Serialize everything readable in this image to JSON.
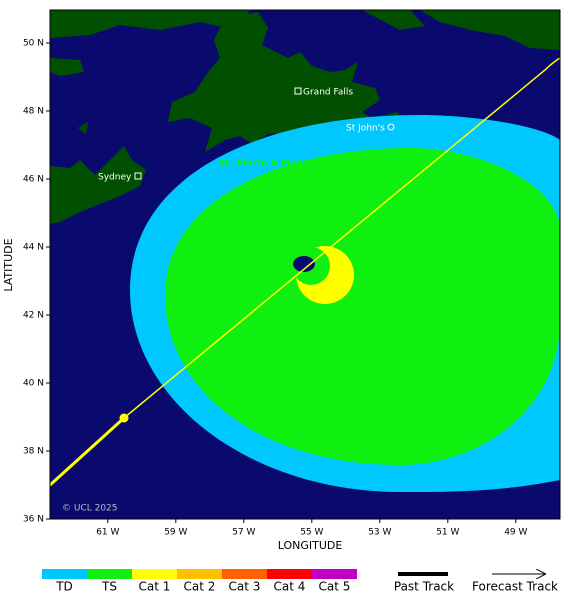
{
  "map": {
    "x_axis": {
      "label": "LONGITUDE",
      "lim": [
        -62.7,
        -47.7
      ],
      "ticks": [
        {
          "value": -61,
          "label": "61 W"
        },
        {
          "value": -59,
          "label": "59 W"
        },
        {
          "value": -57,
          "label": "57 W"
        },
        {
          "value": -55,
          "label": "55 W"
        },
        {
          "value": -53,
          "label": "53 W"
        },
        {
          "value": -51,
          "label": "51 W"
        },
        {
          "value": -49,
          "label": "49 W"
        }
      ]
    },
    "y_axis": {
      "label": "LATITUDE",
      "lim": [
        36,
        50.97
      ],
      "ticks": [
        {
          "value": 36,
          "label": "36 N"
        },
        {
          "value": 38,
          "label": "38 N"
        },
        {
          "value": 40,
          "label": "40 N"
        },
        {
          "value": 42,
          "label": "42 N"
        },
        {
          "value": 44,
          "label": "44 N"
        },
        {
          "value": 46,
          "label": "46 N"
        },
        {
          "value": 48,
          "label": "48 N"
        },
        {
          "value": 50,
          "label": "50 N"
        }
      ]
    },
    "places": [
      "Grand Falls",
      "St John's",
      "Sydney"
    ],
    "region": "St. Pierre & Miquelon",
    "credit": "© UCL 2025"
  },
  "legend": {
    "intensity": [
      {
        "label": "TD",
        "color": "#00c8ff"
      },
      {
        "label": "TS",
        "color": "#10f010"
      },
      {
        "label": "Cat 1",
        "color": "#ffff00"
      },
      {
        "label": "Cat 2",
        "color": "#ffc000"
      },
      {
        "label": "Cat 3",
        "color": "#ff6000"
      },
      {
        "label": "Cat 4",
        "color": "#ff0000"
      },
      {
        "label": "Cat 5",
        "color": "#c000c0"
      }
    ],
    "tracks": [
      "Past Track",
      "Forecast Track"
    ]
  }
}
